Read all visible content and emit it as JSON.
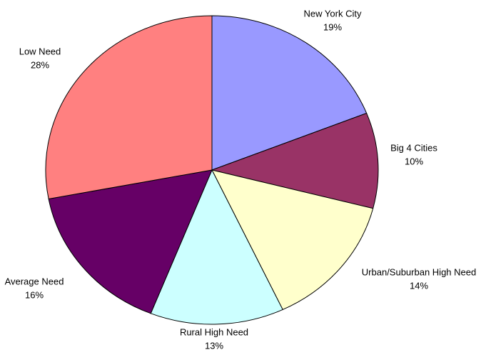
{
  "chart_data": {
    "type": "pie",
    "categories": [
      "New York City",
      "Big 4 Cities",
      "Urban/Suburban High Need",
      "Rural High Need",
      "Average Need",
      "Low Need"
    ],
    "values": [
      19,
      10,
      14,
      13,
      16,
      28
    ],
    "value_labels": [
      "19%",
      "10%",
      "14%",
      "13%",
      "16%",
      "28%"
    ],
    "colors": [
      "#9999ff",
      "#993366",
      "#ffffcc",
      "#ccffff",
      "#660066",
      "#ff8080"
    ]
  }
}
